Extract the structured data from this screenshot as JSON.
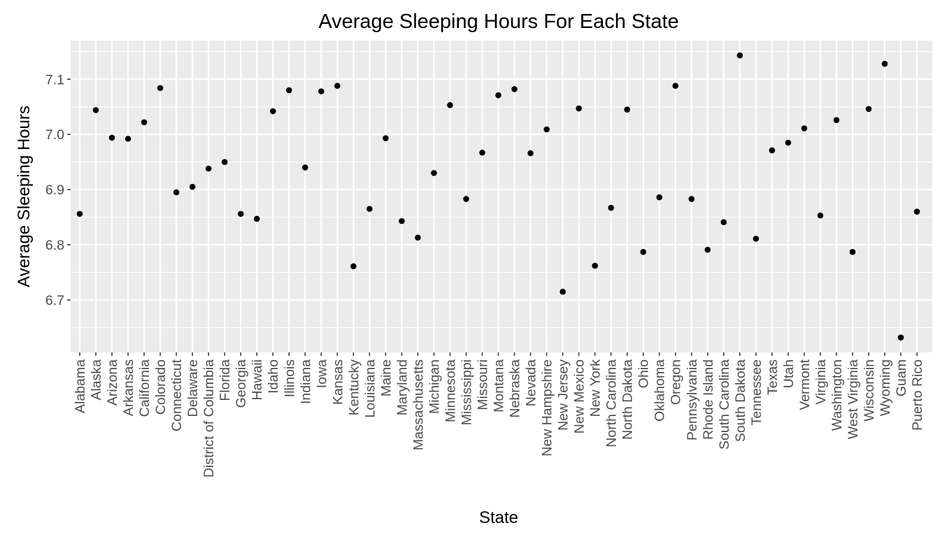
{
  "chart_data": {
    "type": "scatter",
    "title": "Average Sleeping Hours For Each State",
    "xlabel": "State",
    "ylabel": "Average Sleeping Hours",
    "ylim": [
      6.605,
      7.17
    ],
    "yticks": [
      "6.7",
      "6.8",
      "6.9",
      "7.0",
      "7.1"
    ],
    "grid": true,
    "point_color": "#000000",
    "panel_background": "#ebebeb",
    "grid_color": "#ffffff",
    "categories": [
      "Alabama",
      "Alaska",
      "Arizona",
      "Arkansas",
      "California",
      "Colorado",
      "Connecticut",
      "Delaware",
      "District of Columbia",
      "Florida",
      "Georgia",
      "Hawaii",
      "Idaho",
      "Illinois",
      "Indiana",
      "Iowa",
      "Kansas",
      "Kentucky",
      "Louisiana",
      "Maine",
      "Maryland",
      "Massachusetts",
      "Michigan",
      "Minnesota",
      "Mississippi",
      "Missouri",
      "Montana",
      "Nebraska",
      "Nevada",
      "New Hampshire",
      "New Jersey",
      "New Mexico",
      "New York",
      "North Carolina",
      "North Dakota",
      "Ohio",
      "Oklahoma",
      "Oregon",
      "Pennsylvania",
      "Rhode Island",
      "South Carolina",
      "South Dakota",
      "Tennessee",
      "Texas",
      "Utah",
      "Vermont",
      "Virginia",
      "Washington",
      "West Virginia",
      "Wisconsin",
      "Wyoming",
      "Guam",
      "Puerto Rico"
    ],
    "values": [
      6.856,
      7.044,
      6.994,
      6.992,
      7.022,
      7.084,
      6.895,
      6.905,
      6.938,
      6.95,
      6.856,
      6.847,
      7.042,
      7.08,
      6.94,
      7.078,
      7.088,
      6.761,
      6.865,
      6.993,
      6.843,
      6.813,
      6.93,
      7.053,
      6.883,
      6.967,
      7.071,
      7.082,
      6.966,
      7.009,
      6.715,
      7.047,
      6.762,
      6.867,
      7.045,
      6.787,
      6.886,
      7.088,
      6.883,
      6.791,
      6.841,
      7.143,
      6.811,
      6.971,
      6.985,
      7.011,
      6.853,
      7.026,
      6.787,
      7.046,
      7.128,
      6.632,
      6.86
    ]
  }
}
